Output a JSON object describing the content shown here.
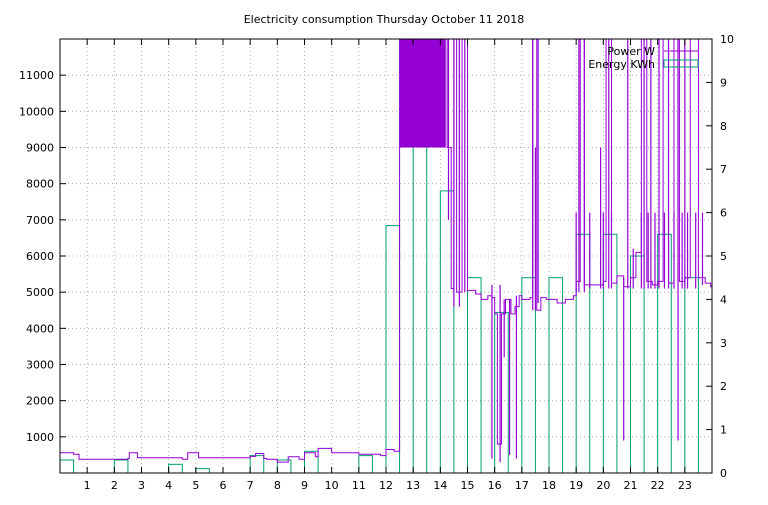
{
  "chart_data": {
    "type": "line",
    "title": "Electricity consumption Thursday October 11 2018",
    "xlabel": "",
    "ylabel": "",
    "y2label": "",
    "xlim": [
      0,
      24
    ],
    "ylim": [
      0,
      12000
    ],
    "y2lim": [
      0,
      10
    ],
    "x_ticks": [
      1,
      2,
      3,
      4,
      5,
      6,
      7,
      8,
      9,
      10,
      11,
      12,
      13,
      14,
      15,
      16,
      17,
      18,
      19,
      20,
      21,
      22,
      23
    ],
    "y_ticks": [
      1000,
      2000,
      3000,
      4000,
      5000,
      6000,
      7000,
      8000,
      9000,
      10000,
      11000
    ],
    "y2_ticks": [
      0,
      1,
      2,
      3,
      4,
      5,
      6,
      7,
      8,
      9,
      10
    ],
    "grid": true,
    "legend_position": "top-right",
    "colors": {
      "power": "#9400d3",
      "energy": "#009e73"
    },
    "series": [
      {
        "name": "Power W",
        "axis": "y",
        "style": "steps",
        "x": [
          0.0,
          0.5,
          0.7,
          1.0,
          1.5,
          2.0,
          2.5,
          2.55,
          2.85,
          3.0,
          3.5,
          4.0,
          4.5,
          4.7,
          5.1,
          5.5,
          6.0,
          6.5,
          7.0,
          7.2,
          7.5,
          7.6,
          8.0,
          8.4,
          8.8,
          9.0,
          9.4,
          9.5,
          10.0,
          10.5,
          11.0,
          11.5,
          11.8,
          12.0,
          12.3,
          12.5,
          12.6,
          13.0,
          13.5,
          14.0,
          14.25,
          14.4,
          14.5,
          14.6,
          14.8,
          15.0,
          15.3,
          15.5,
          15.75,
          15.9,
          16.0,
          16.1,
          16.25,
          16.4,
          16.6,
          16.75,
          16.9,
          17.0,
          17.3,
          17.4,
          17.55,
          17.7,
          17.9,
          18.0,
          18.3,
          18.6,
          18.9,
          19.0,
          19.15,
          19.3,
          19.5,
          19.8,
          20.0,
          20.1,
          20.3,
          20.5,
          20.75,
          21.0,
          21.2,
          21.4,
          21.6,
          21.8,
          22.0,
          22.2,
          22.4,
          22.6,
          22.8,
          23.0,
          23.2,
          23.5,
          23.75,
          23.95
        ],
        "values": [
          560,
          520,
          380,
          380,
          380,
          380,
          400,
          560,
          420,
          420,
          420,
          420,
          380,
          560,
          420,
          420,
          420,
          420,
          460,
          540,
          400,
          380,
          300,
          450,
          380,
          560,
          450,
          680,
          560,
          560,
          520,
          520,
          480,
          650,
          600,
          12000,
          12000,
          12000,
          12000,
          12000,
          9000,
          5100,
          12000,
          5000,
          12000,
          5050,
          4950,
          4800,
          4900,
          4850,
          4400,
          800,
          4400,
          4800,
          4400,
          4600,
          4900,
          4800,
          4850,
          12000,
          4500,
          4850,
          4800,
          4800,
          4700,
          4800,
          4900,
          5300,
          12000,
          5200,
          5200,
          5200,
          5300,
          12000,
          5250,
          5450,
          5150,
          5400,
          6100,
          12000,
          5300,
          5200,
          5300,
          12000,
          5250,
          12000,
          5300,
          5400,
          12000,
          5400,
          5250,
          5150
        ],
        "spikes": [
          {
            "x": 12.55,
            "low": 9000,
            "high": 12000
          },
          {
            "x": 12.65,
            "low": 9000,
            "high": 12000
          },
          {
            "x": 12.75,
            "low": 9000,
            "high": 12000
          },
          {
            "x": 12.85,
            "low": 9000,
            "high": 12000
          },
          {
            "x": 12.95,
            "low": 9000,
            "high": 12000
          },
          {
            "x": 13.05,
            "low": 9000,
            "high": 12000
          },
          {
            "x": 13.15,
            "low": 9000,
            "high": 12000
          },
          {
            "x": 13.25,
            "low": 9000,
            "high": 12000
          },
          {
            "x": 13.35,
            "low": 9000,
            "high": 12000
          },
          {
            "x": 13.45,
            "low": 9000,
            "high": 12000
          },
          {
            "x": 13.55,
            "low": 9000,
            "high": 12000
          },
          {
            "x": 13.65,
            "low": 9000,
            "high": 12000
          },
          {
            "x": 13.75,
            "low": 9000,
            "high": 12000
          },
          {
            "x": 13.85,
            "low": 9000,
            "high": 12000
          },
          {
            "x": 13.95,
            "low": 9000,
            "high": 12000
          },
          {
            "x": 14.05,
            "low": 9000,
            "high": 12000
          },
          {
            "x": 14.15,
            "low": 9000,
            "high": 12000
          },
          {
            "x": 14.3,
            "low": 7000,
            "high": 12000
          },
          {
            "x": 14.5,
            "low": 4600,
            "high": 12000
          },
          {
            "x": 14.7,
            "low": 4600,
            "high": 12000
          },
          {
            "x": 14.9,
            "low": 5000,
            "high": 12000
          },
          {
            "x": 15.9,
            "low": 400,
            "high": 5200
          },
          {
            "x": 16.2,
            "low": 300,
            "high": 5200
          },
          {
            "x": 16.35,
            "low": 3200,
            "high": 4800
          },
          {
            "x": 16.55,
            "low": 500,
            "high": 4800
          },
          {
            "x": 16.8,
            "low": 400,
            "high": 4900
          },
          {
            "x": 17.4,
            "low": 4500,
            "high": 12000
          },
          {
            "x": 17.5,
            "low": 4500,
            "high": 9000
          },
          {
            "x": 17.6,
            "low": 4700,
            "high": 12000
          },
          {
            "x": 19.0,
            "low": 5000,
            "high": 7200
          },
          {
            "x": 19.1,
            "low": 5000,
            "high": 12000
          },
          {
            "x": 19.3,
            "low": 5000,
            "high": 12000
          },
          {
            "x": 19.5,
            "low": 5100,
            "high": 7200
          },
          {
            "x": 19.9,
            "low": 5100,
            "high": 9000
          },
          {
            "x": 20.0,
            "low": 5100,
            "high": 7200
          },
          {
            "x": 20.2,
            "low": 5100,
            "high": 12000
          },
          {
            "x": 20.3,
            "low": 5100,
            "high": 7200
          },
          {
            "x": 20.75,
            "low": 900,
            "high": 5400
          },
          {
            "x": 20.9,
            "low": 5100,
            "high": 12000
          },
          {
            "x": 21.1,
            "low": 5100,
            "high": 6200
          },
          {
            "x": 21.4,
            "low": 5100,
            "high": 7200
          },
          {
            "x": 21.5,
            "low": 5100,
            "high": 12000
          },
          {
            "x": 21.65,
            "low": 5100,
            "high": 7200
          },
          {
            "x": 21.75,
            "low": 5100,
            "high": 12000
          },
          {
            "x": 21.9,
            "low": 5100,
            "high": 7200
          },
          {
            "x": 22.05,
            "low": 5100,
            "high": 12000
          },
          {
            "x": 22.25,
            "low": 5100,
            "high": 7200
          },
          {
            "x": 22.4,
            "low": 5100,
            "high": 12000
          },
          {
            "x": 22.6,
            "low": 5100,
            "high": 7200
          },
          {
            "x": 22.75,
            "low": 900,
            "high": 12000
          },
          {
            "x": 22.9,
            "low": 5100,
            "high": 7200
          },
          {
            "x": 23.0,
            "low": 5100,
            "high": 12000
          },
          {
            "x": 23.1,
            "low": 5100,
            "high": 7200
          },
          {
            "x": 23.4,
            "low": 5100,
            "high": 7200
          },
          {
            "x": 23.65,
            "low": 5200,
            "high": 7200
          }
        ]
      },
      {
        "name": "Energy KWh",
        "axis": "y2",
        "style": "boxes",
        "x": [
          0,
          2,
          4,
          5,
          7,
          8,
          9,
          11,
          12,
          13,
          14,
          15,
          16,
          17,
          18,
          19,
          20,
          21,
          22,
          23
        ],
        "values": [
          0.3,
          0.3,
          0.2,
          0.1,
          0.4,
          0.3,
          0.5,
          0.4,
          5.7,
          9.2,
          6.5,
          4.5,
          3.7,
          4.5,
          4.5,
          5.5,
          5.5,
          5.0,
          5.5,
          4.5
        ]
      }
    ]
  }
}
